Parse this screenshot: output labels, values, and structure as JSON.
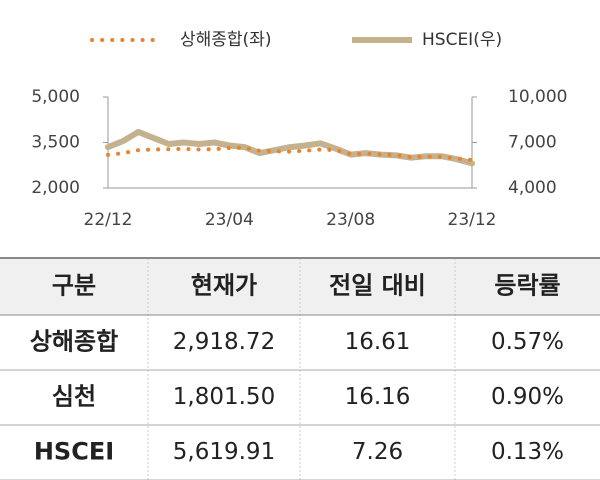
{
  "chart_data": {
    "type": "line",
    "categories": [
      "22/12",
      null,
      null,
      null,
      null,
      null,
      null,
      null,
      "23/04",
      null,
      null,
      null,
      null,
      null,
      null,
      null,
      "23/08",
      null,
      null,
      null,
      null,
      null,
      null,
      null,
      "23/12"
    ],
    "series": [
      {
        "name": "상해종합(좌)",
        "color": "#e8842e",
        "values": [
          3090,
          3150,
          3250,
          3270,
          3280,
          3290,
          3270,
          3280,
          3320,
          3330,
          3230,
          3210,
          3200,
          3230,
          3270,
          3250,
          3120,
          3130,
          3110,
          3080,
          3020,
          3040,
          3030,
          2970,
          2918.72
        ]
      },
      {
        "name": "HSCEI(우)",
        "color": "#c4b28f",
        "axis": "y2",
        "values": [
          6700,
          7100,
          7700,
          7300,
          6900,
          7000,
          6900,
          7000,
          6800,
          6700,
          6300,
          6500,
          6700,
          6800,
          6950,
          6600,
          6200,
          6300,
          6200,
          6150,
          6000,
          6100,
          6100,
          5900,
          5619.91
        ]
      }
    ],
    "ylim": [
      2000,
      5000
    ],
    "yticks": [
      {
        "value": 2000,
        "label": "2,000"
      },
      {
        "value": 3500,
        "label": "3,500"
      },
      {
        "value": 5000,
        "label": "5,000"
      }
    ],
    "y2lim": [
      4000,
      10000
    ],
    "y2ticks": [
      {
        "value": 4000,
        "label": "4,000"
      },
      {
        "value": 7000,
        "label": "7,000"
      },
      {
        "value": 10000,
        "label": "10,000"
      }
    ]
  },
  "table": {
    "header": [
      "구분",
      "현재가",
      "전일 대비",
      "등락률"
    ],
    "rows": [
      [
        "상해종합",
        "2,918.72",
        "16.61",
        "0.57%"
      ],
      [
        "심천",
        "1,801.50",
        "16.16",
        "0.90%"
      ],
      [
        "HSCEI",
        "5,619.91",
        "7.26",
        "0.13%"
      ]
    ]
  }
}
